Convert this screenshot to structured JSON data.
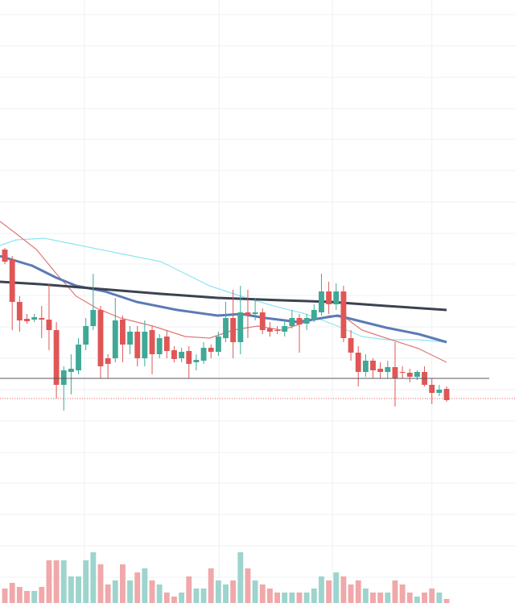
{
  "chart_data": {
    "type": "candlestick",
    "xlim": [
      -0.66,
      69.29
    ],
    "ylim": [
      0,
      749
    ],
    "volume_lim": [
      0,
      749
    ],
    "up_color": "#3fa896",
    "down_color": "#e05656",
    "volume_up_color": "#9dd4cd",
    "volume_down_color": "#f0a8aa",
    "grid": true,
    "grid_color": "#eef0f3",
    "ygrid": [
      731,
      692,
      653,
      614,
      576,
      537,
      498,
      459,
      421,
      382,
      343,
      304,
      265,
      226,
      187,
      149,
      110,
      71,
      32
    ],
    "xgrid": [
      10.8,
      29.1,
      44.5,
      58.0
    ],
    "open": [
      439,
      427,
      374,
      353,
      352,
      354,
      352,
      339,
      271,
      287,
      289,
      321,
      344,
      364,
      304,
      304,
      352,
      321,
      337,
      304,
      339,
      309,
      331,
      314,
      304,
      313,
      299,
      301,
      317,
      312,
      329,
      354,
      324,
      361,
      359,
      361,
      341,
      339,
      337,
      344,
      354,
      347,
      352,
      361,
      387,
      371,
      387,
      329,
      311,
      287,
      301,
      291,
      287,
      293,
      287,
      286,
      281,
      287,
      271,
      261,
      266
    ],
    "high": [
      441,
      431,
      381,
      359,
      359,
      369,
      397,
      349,
      294,
      309,
      329,
      354,
      409,
      369,
      309,
      379,
      357,
      344,
      344,
      351,
      344,
      334,
      339,
      319,
      317,
      319,
      309,
      324,
      321,
      337,
      374,
      389,
      394,
      389,
      379,
      366,
      349,
      344,
      351,
      364,
      359,
      359,
      371,
      409,
      399,
      397,
      394,
      339,
      319,
      309,
      304,
      299,
      301,
      324,
      294,
      291,
      289,
      294,
      279,
      271,
      269
    ],
    "low": [
      421,
      339,
      337,
      347,
      349,
      329,
      314,
      254,
      239,
      259,
      284,
      314,
      339,
      279,
      279,
      299,
      299,
      309,
      294,
      294,
      284,
      304,
      304,
      299,
      299,
      279,
      289,
      297,
      304,
      307,
      324,
      304,
      309,
      329,
      351,
      334,
      331,
      334,
      331,
      341,
      311,
      339,
      349,
      357,
      359,
      364,
      324,
      301,
      269,
      281,
      279,
      279,
      279,
      244,
      279,
      274,
      277,
      269,
      247,
      257,
      250
    ],
    "close": [
      424,
      374,
      351,
      350,
      355,
      352,
      339,
      271,
      289,
      291,
      321,
      344,
      364,
      294,
      297,
      351,
      321,
      337,
      304,
      337,
      309,
      329,
      313,
      303,
      312,
      297,
      302,
      317,
      312,
      331,
      354,
      324,
      361,
      357,
      361,
      339,
      337,
      338,
      344,
      354,
      346,
      354,
      364,
      387,
      371,
      387,
      329,
      311,
      287,
      301,
      289,
      287,
      293,
      279,
      286,
      281,
      287,
      271,
      261,
      265,
      252
    ],
    "volume": [
      18,
      25,
      20,
      15,
      15,
      20,
      53,
      53,
      53,
      33,
      33,
      53,
      63,
      48,
      23,
      28,
      48,
      28,
      38,
      43,
      28,
      23,
      13,
      8,
      13,
      33,
      18,
      18,
      43,
      28,
      23,
      28,
      63,
      43,
      28,
      23,
      18,
      13,
      13,
      13,
      13,
      13,
      18,
      33,
      28,
      38,
      33,
      23,
      28,
      18,
      13,
      13,
      13,
      28,
      23,
      13,
      8,
      13,
      18,
      13,
      5
    ],
    "lines": [
      {
        "color": "#8ee6f2",
        "width": 1.2,
        "x": [
          -0.66,
          1.5,
          5.4,
          10.3,
          15.7,
          21.2,
          24.5,
          27.8,
          32.1,
          36.5,
          40.9,
          45.2,
          48.5,
          51.8,
          56.2,
          60
        ],
        "values": [
          444,
          451,
          453,
          444,
          434,
          424,
          409,
          394,
          381,
          369,
          359,
          344,
          331,
          327,
          327,
          324
        ]
      },
      {
        "color": "#e0787a",
        "width": 1.2,
        "x": [
          -0.66,
          1.5,
          4.3,
          7.0,
          9.7,
          12.5,
          15.7,
          20.1,
          24.5,
          27.8,
          31.0,
          34.3,
          37.6,
          40.9,
          44.2,
          46.3,
          48.5,
          51.8,
          56.2,
          60
        ],
        "values": [
          474,
          459,
          439,
          409,
          381,
          366,
          354,
          344,
          331,
          329,
          339,
          344,
          339,
          349,
          357,
          354,
          339,
          329,
          316,
          299
        ]
      },
      {
        "color": "#5b7bb5",
        "width": 3,
        "x": [
          -0.66,
          3.7,
          7.0,
          9.7,
          13.6,
          17.9,
          23.4,
          28.9,
          32.1,
          35.4,
          39.8,
          43.1,
          45.2,
          47.4,
          51.8,
          56.2,
          60
        ],
        "values": [
          431,
          419,
          404,
          394,
          387,
          374,
          364,
          357,
          359,
          354,
          349,
          354,
          357,
          352,
          342,
          334,
          324
        ]
      },
      {
        "color": "#3b4250",
        "width": 3,
        "x": [
          -0.66,
          4.8,
          10.3,
          21.2,
          28.9,
          37.6,
          44.2,
          51.8,
          60
        ],
        "values": [
          399,
          396,
          392,
          384,
          379,
          376,
          374,
          369,
          364
        ]
      }
    ],
    "price_lines": [
      {
        "value": 279,
        "color": "#555a60",
        "style": "solid"
      },
      {
        "value": 254,
        "color": "#e05656",
        "style": "dotted"
      }
    ]
  }
}
